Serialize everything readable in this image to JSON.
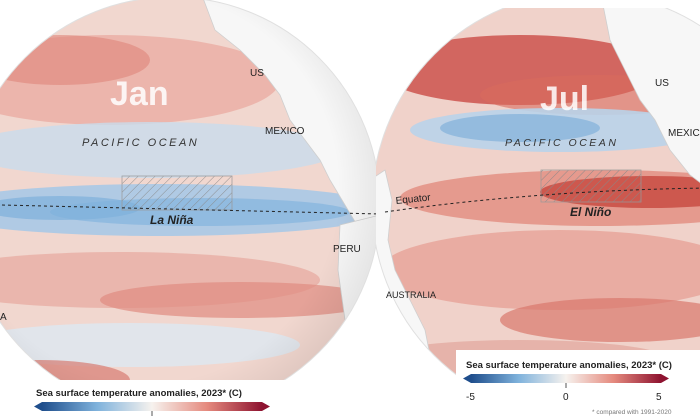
{
  "left_panel": {
    "month": "Jan",
    "ocean_label": "PACIFIC OCEAN",
    "box_label": "La Niña",
    "countries": {
      "us": "US",
      "mexico": "MEXICO",
      "peru": "PERU",
      "partial": "A"
    },
    "legend_title": "Sea surface temperature anomalies, 2023* (C)"
  },
  "right_panel": {
    "month": "Jul",
    "ocean_label": "PACIFIC OCEAN",
    "box_label": "El Niño",
    "equator_label": "Equator",
    "countries": {
      "us": "US",
      "mexico": "MEXICO",
      "australia": "AUSTRALIA"
    },
    "legend_title": "Sea surface temperature anomalies, 2023* (C)",
    "legend_ticks": [
      "-5",
      "0",
      "5"
    ],
    "footnote": "* compared with 1991-2020"
  },
  "colors": {
    "warm": "#d9534f",
    "deep_warm": "#9e1b32",
    "cool": "#6aa6d6",
    "deep_cool": "#1f5f9e",
    "land": "#f7f7f7",
    "ocean_base": "#f3dcd6"
  },
  "icons": {
    "legend_arrow_left": "arrow-left-icon",
    "legend_arrow_right": "arrow-right-icon"
  }
}
